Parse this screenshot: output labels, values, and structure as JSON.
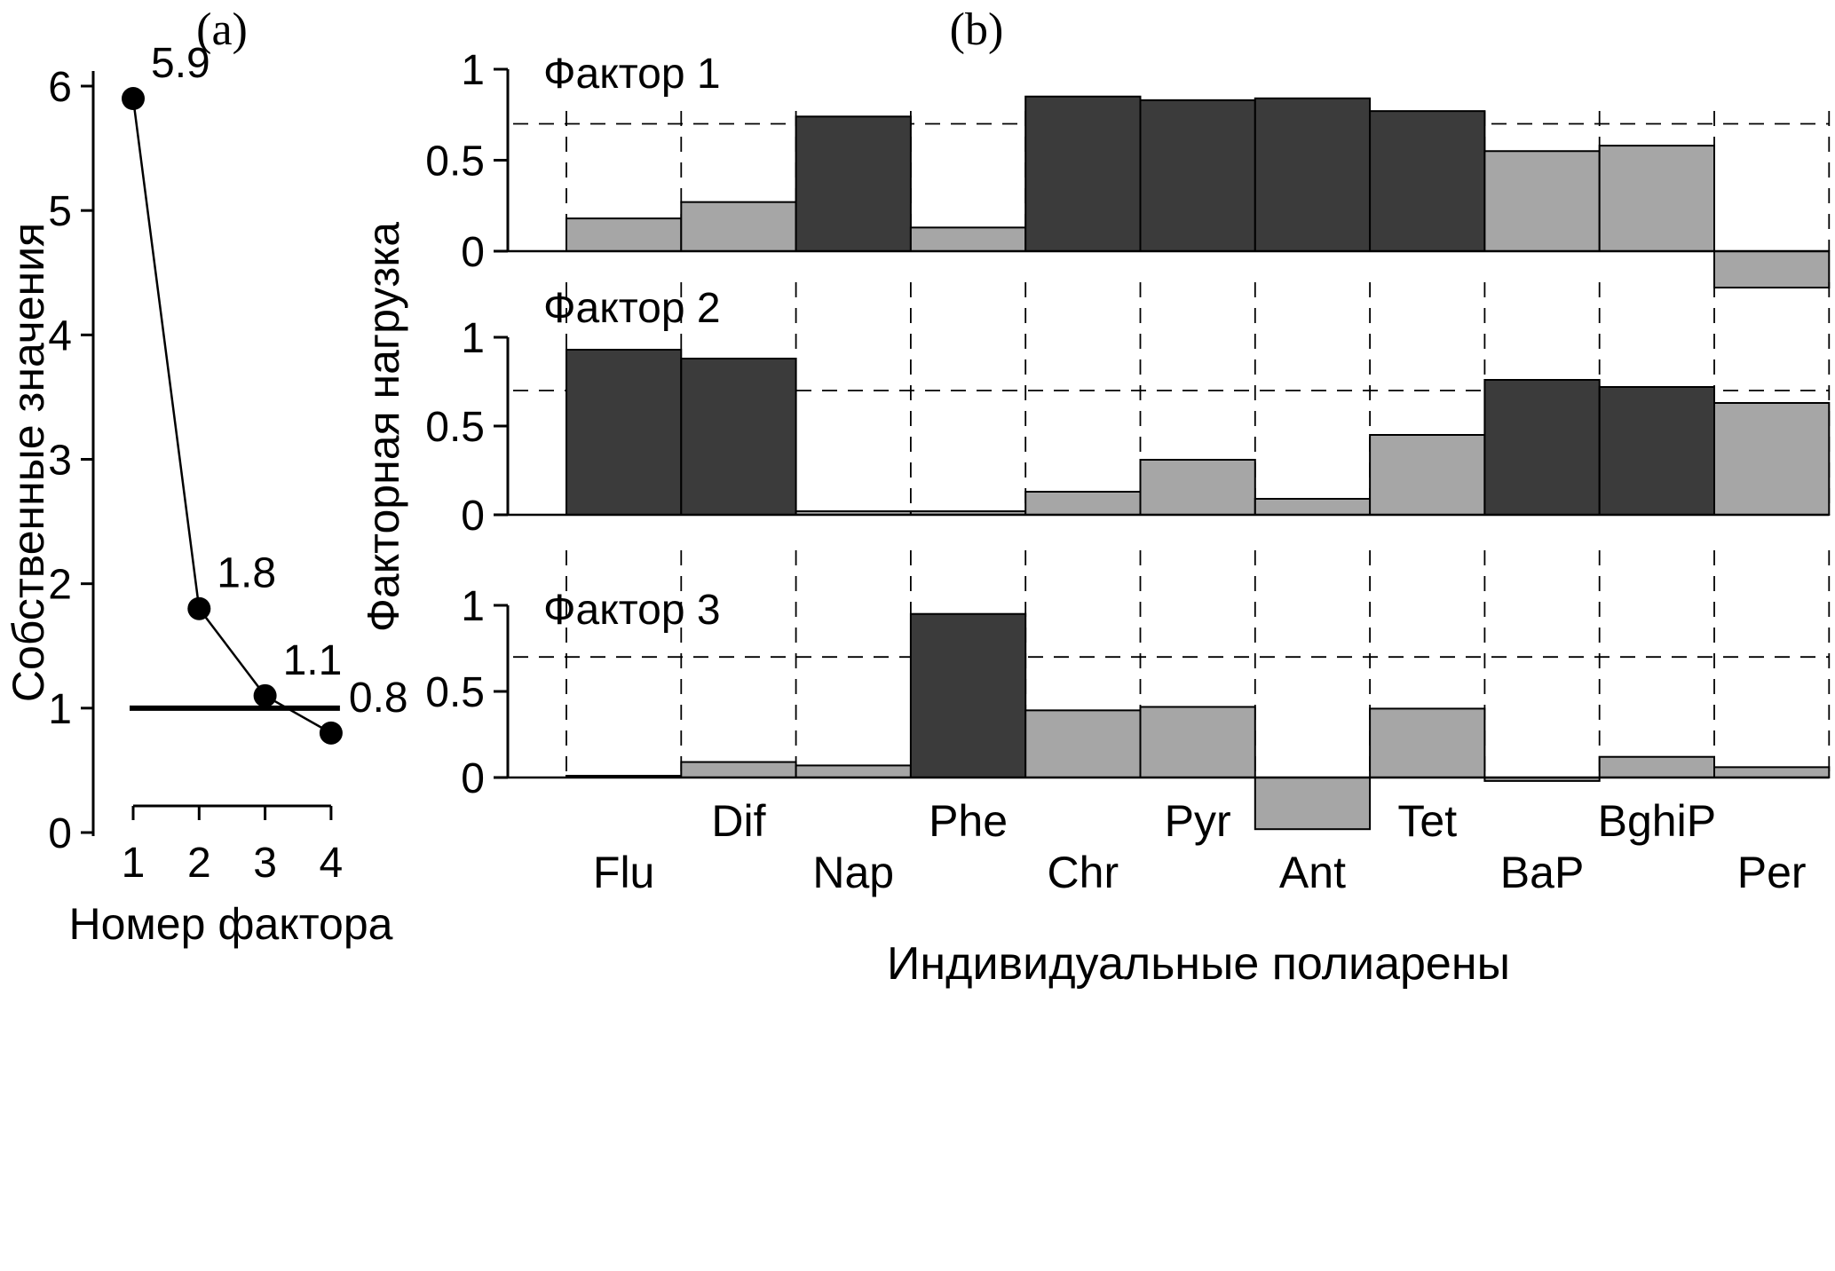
{
  "figure": {
    "background": "#ffffff"
  },
  "chart_data": [
    {
      "id": "scree-plot",
      "type": "line",
      "title": "(a)",
      "ylabel": "Собственные значения",
      "xlabel": "Номер фактора",
      "x": [
        1,
        2,
        3,
        4
      ],
      "values": [
        5.9,
        1.8,
        1.1,
        0.8
      ],
      "point_labels": [
        "5.9",
        "1.8",
        "1.1",
        "0.8"
      ],
      "xticks": [
        "1",
        "2",
        "3",
        "4"
      ],
      "yticks": [
        0,
        1,
        2,
        3,
        4,
        5,
        6
      ],
      "ylim": [
        0,
        6
      ],
      "cutoff_line_y": 1.0,
      "marker_color": "#000000",
      "line_color": "#000000"
    },
    {
      "id": "factor-loadings",
      "type": "bar",
      "title": "(b)",
      "ylabel": "Факторная нагрузка",
      "xlabel": "Индивидуальные полиарены",
      "categories": [
        "Flu",
        "Dif",
        "Nap",
        "Phe",
        "Chr",
        "Pyr",
        "Ant",
        "Tet",
        "BaP",
        "BghiP",
        "Per"
      ],
      "yticks": [
        0,
        0.5,
        1
      ],
      "ytick_labels": [
        "0",
        "0.5",
        "1"
      ],
      "ylim": [
        -0.35,
        1.0
      ],
      "threshold": 0.7,
      "series": [
        {
          "name": "Фактор 1",
          "values": [
            0.18,
            0.27,
            0.74,
            0.13,
            0.85,
            0.83,
            0.84,
            0.77,
            0.55,
            0.58,
            -0.2
          ]
        },
        {
          "name": "Фактор 2",
          "values": [
            0.93,
            0.88,
            0.02,
            0.02,
            0.13,
            0.31,
            0.09,
            0.45,
            0.76,
            0.72,
            0.63
          ]
        },
        {
          "name": "Фактор 3",
          "values": [
            0.01,
            0.09,
            0.07,
            0.95,
            0.39,
            0.41,
            -0.3,
            0.4,
            -0.02,
            0.12,
            0.06
          ]
        }
      ],
      "bar_colors": {
        "high_loading": "#3b3b3b",
        "low_loading": "#a6a6a6"
      },
      "grid": "dashed vertical lines at category boundaries; dashed horizontal line at threshold 0.7"
    }
  ]
}
